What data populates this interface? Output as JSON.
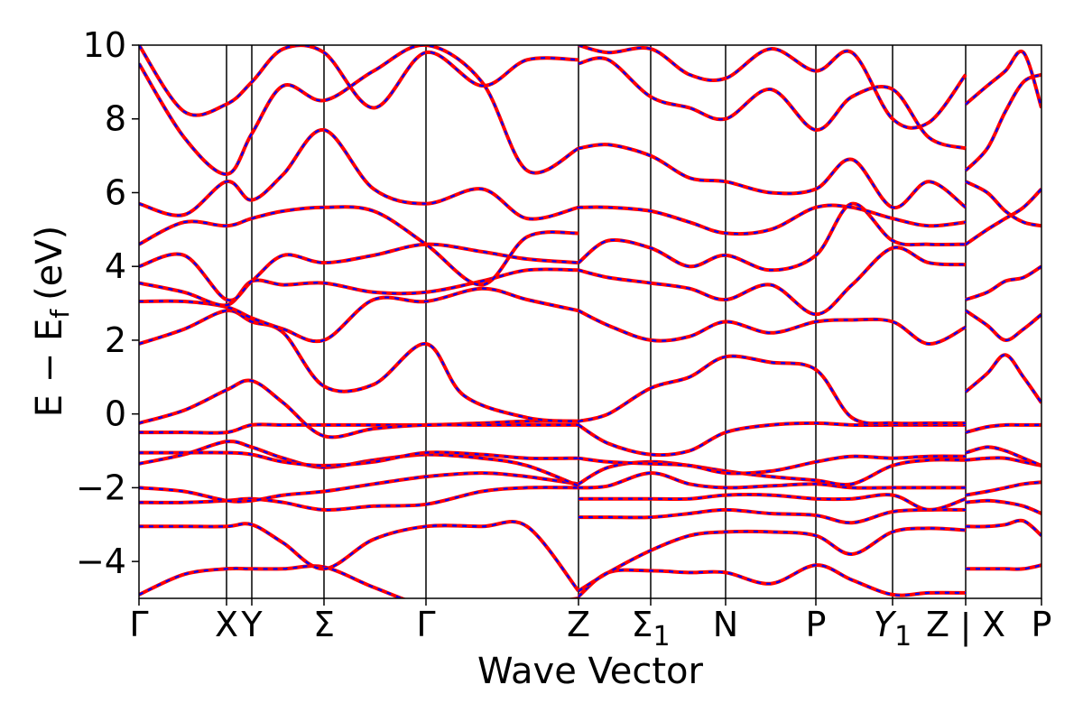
{
  "chart_data": {
    "type": "line",
    "xlabel": "Wave Vector",
    "ylabel": "E − E",
    "ylabel_sub": "f",
    "ylabel_unit": "(eV)",
    "ylim": [
      -5,
      10
    ],
    "yticks": [
      -4,
      -2,
      0,
      2,
      4,
      6,
      8,
      10
    ],
    "ytick_labels": [
      "−4",
      "−2",
      "0",
      "2",
      "4",
      "6",
      "8",
      "10"
    ],
    "xlim": [
      0,
      10
    ],
    "kpoints": [
      {
        "label": "Γ",
        "x": 0
      },
      {
        "label": "X",
        "x": 0.97
      },
      {
        "label": "Y",
        "x": 1.25
      },
      {
        "label": "Σ",
        "x": 2.05
      },
      {
        "label": "Γ",
        "x": 3.18
      },
      {
        "label": "Z",
        "x": 4.87
      },
      {
        "label": "Σ",
        "sub": "1",
        "x": 5.67
      },
      {
        "label": "N",
        "x": 6.5
      },
      {
        "label": "P",
        "x": 7.5
      },
      {
        "label": "Y",
        "sub": "1",
        "italic": true,
        "x": 8.35
      },
      {
        "label": "Z",
        "x": 9.16
      },
      {
        "label": "X",
        "x": 9.16
      },
      {
        "label": "P",
        "x": 10
      }
    ],
    "segment_break_label": "|",
    "colors": {
      "dft": "#ff0000",
      "wannier": "#0000ff"
    },
    "bands": [
      {
        "x": [
          0,
          0.5,
          0.97,
          1.25,
          1.6,
          2.05,
          2.6,
          3.18,
          3.8,
          4.3,
          4.87
        ],
        "y": [
          -4.9,
          -4.35,
          -4.2,
          -4.2,
          -4.2,
          -4.15,
          -4.7,
          -5.2,
          -5.3,
          -5.2,
          -5.0
        ]
      },
      {
        "x": [
          0,
          0.5,
          0.97,
          1.25,
          1.6,
          2.05,
          2.6,
          3.18,
          3.8,
          4.3,
          4.87
        ],
        "y": [
          -3.05,
          -3.05,
          -3.05,
          -3.0,
          -3.5,
          -4.2,
          -3.4,
          -3.05,
          -3.05,
          -3.05,
          -4.8
        ]
      },
      {
        "x": [
          0,
          0.5,
          0.97,
          1.25,
          1.6,
          2.05,
          2.6,
          3.18,
          3.8,
          4.3,
          4.87
        ],
        "y": [
          -2.4,
          -2.4,
          -2.35,
          -2.3,
          -2.4,
          -2.6,
          -2.5,
          -2.45,
          -2.1,
          -2.0,
          -2.0
        ]
      },
      {
        "x": [
          0,
          0.5,
          0.97,
          1.25,
          1.6,
          2.05,
          2.6,
          3.18,
          3.8,
          4.3,
          4.87
        ],
        "y": [
          -2.0,
          -2.1,
          -2.35,
          -2.35,
          -2.2,
          -2.1,
          -1.9,
          -1.7,
          -1.6,
          -1.7,
          -1.9
        ]
      },
      {
        "x": [
          0,
          0.5,
          0.97,
          1.25,
          1.6,
          2.05,
          2.6,
          3.18,
          3.8,
          4.3,
          4.87
        ],
        "y": [
          -1.35,
          -1.1,
          -0.75,
          -0.9,
          -1.2,
          -1.45,
          -1.25,
          -1.1,
          -1.2,
          -1.4,
          -1.95
        ]
      },
      {
        "x": [
          0,
          0.5,
          0.97,
          1.25,
          1.6,
          2.05,
          2.6,
          3.18,
          3.8,
          4.3,
          4.87
        ],
        "y": [
          -1.05,
          -1.05,
          -1.05,
          -1.1,
          -1.3,
          -1.4,
          -1.3,
          -1.05,
          -1.1,
          -1.2,
          -1.2
        ]
      },
      {
        "x": [
          0,
          0.5,
          0.97,
          1.25,
          1.6,
          2.05,
          2.6,
          3.18,
          3.8,
          4.3,
          4.87
        ],
        "y": [
          -0.5,
          -0.5,
          -0.5,
          -0.3,
          -0.3,
          -0.3,
          -0.3,
          -0.3,
          -0.25,
          -0.2,
          -0.2
        ]
      },
      {
        "x": [
          0,
          0.5,
          0.97,
          1.25,
          1.6,
          2.05,
          2.6,
          3.18,
          3.8,
          4.3,
          4.87
        ],
        "y": [
          -0.25,
          0.1,
          0.65,
          0.9,
          0.3,
          -0.6,
          -0.4,
          -0.3,
          -0.3,
          -0.3,
          -0.3
        ]
      },
      {
        "x": [
          0,
          0.5,
          0.97,
          1.25,
          1.6,
          2.05,
          2.6,
          3.18,
          3.6,
          4.3,
          4.87
        ],
        "y": [
          1.9,
          2.3,
          2.8,
          2.5,
          2.2,
          0.75,
          0.8,
          1.9,
          0.5,
          -0.1,
          -0.2
        ]
      },
      {
        "x": [
          0,
          0.5,
          0.97,
          1.25,
          1.6,
          2.05,
          2.6,
          3.18,
          3.8,
          4.3,
          4.87
        ],
        "y": [
          3.05,
          3.05,
          2.9,
          2.6,
          2.3,
          2.0,
          3.1,
          3.05,
          3.4,
          3.1,
          2.8
        ]
      },
      {
        "x": [
          0,
          0.5,
          0.97,
          1.25,
          1.6,
          2.05,
          2.6,
          3.18,
          3.8,
          4.3,
          4.87
        ],
        "y": [
          3.55,
          3.3,
          2.95,
          3.6,
          3.5,
          3.55,
          3.3,
          3.3,
          3.6,
          3.9,
          3.9
        ]
      },
      {
        "x": [
          0,
          0.5,
          0.97,
          1.25,
          1.6,
          2.05,
          2.6,
          3.18,
          3.8,
          4.3,
          4.87
        ],
        "y": [
          4.0,
          4.3,
          3.1,
          3.6,
          4.3,
          4.1,
          4.3,
          4.6,
          4.4,
          4.2,
          4.1
        ]
      },
      {
        "x": [
          0,
          0.5,
          0.97,
          1.25,
          1.6,
          2.05,
          2.6,
          3.18,
          3.8,
          4.3,
          4.87
        ],
        "y": [
          4.6,
          5.2,
          5.1,
          5.3,
          5.5,
          5.6,
          5.5,
          4.6,
          3.5,
          4.8,
          4.9
        ]
      },
      {
        "x": [
          0,
          0.5,
          0.97,
          1.25,
          1.6,
          2.05,
          2.6,
          3.18,
          3.8,
          4.3,
          4.87
        ],
        "y": [
          5.7,
          5.4,
          6.3,
          5.8,
          6.5,
          7.7,
          6.1,
          5.7,
          6.1,
          5.3,
          5.6
        ]
      },
      {
        "x": [
          0,
          0.5,
          0.97,
          1.25,
          1.6,
          2.05,
          2.6,
          3.18,
          3.8,
          4.3,
          4.87
        ],
        "y": [
          9.5,
          7.5,
          6.5,
          7.6,
          8.9,
          8.5,
          9.3,
          10,
          9.0,
          6.6,
          7.2
        ]
      },
      {
        "x": [
          0,
          0.5,
          0.97,
          1.25,
          1.6,
          2.05,
          2.6,
          3.18,
          3.8,
          4.3,
          4.87
        ],
        "y": [
          10,
          8.2,
          8.4,
          9.0,
          9.9,
          9.8,
          8.3,
          9.8,
          8.9,
          9.6,
          9.6
        ]
      },
      {
        "x": [
          4.87,
          5.2,
          5.67,
          6.1,
          6.5,
          7.0,
          7.5,
          7.9,
          8.35,
          8.75,
          9.16
        ],
        "y": [
          -4.95,
          -4.3,
          -4.25,
          -4.3,
          -4.3,
          -4.6,
          -4.1,
          -4.5,
          -4.9,
          -4.85,
          -4.85
        ]
      },
      {
        "x": [
          4.87,
          5.2,
          5.67,
          6.1,
          6.5,
          7.0,
          7.5,
          7.9,
          8.35,
          8.75,
          9.16
        ],
        "y": [
          -4.8,
          -4.3,
          -3.7,
          -3.3,
          -3.2,
          -3.2,
          -3.3,
          -3.8,
          -3.2,
          -3.1,
          -3.15
        ]
      },
      {
        "x": [
          4.87,
          5.2,
          5.67,
          6.1,
          6.5,
          7.0,
          7.5,
          7.9,
          8.35,
          8.75,
          9.16
        ],
        "y": [
          -2.8,
          -2.8,
          -2.8,
          -2.7,
          -2.6,
          -2.7,
          -2.75,
          -2.95,
          -2.65,
          -2.6,
          -2.6
        ]
      },
      {
        "x": [
          4.87,
          5.2,
          5.67,
          6.1,
          6.5,
          7.0,
          7.5,
          7.9,
          8.35,
          8.75,
          9.16
        ],
        "y": [
          -2.3,
          -2.3,
          -2.3,
          -2.3,
          -2.2,
          -2.2,
          -2.3,
          -2.3,
          -2.2,
          -2.6,
          -2.3
        ]
      },
      {
        "x": [
          4.87,
          5.2,
          5.67,
          6.1,
          6.5,
          7.0,
          7.5,
          7.9,
          8.35,
          8.75,
          9.16
        ],
        "y": [
          -2.0,
          -1.95,
          -1.6,
          -1.9,
          -2.0,
          -1.95,
          -1.9,
          -2.0,
          -2.0,
          -2.0,
          -2.0
        ]
      },
      {
        "x": [
          4.87,
          5.2,
          5.67,
          6.1,
          6.5,
          7.0,
          7.5,
          7.9,
          8.35,
          8.75,
          9.16
        ],
        "y": [
          -1.9,
          -1.45,
          -1.3,
          -1.4,
          -1.55,
          -1.7,
          -1.8,
          -1.9,
          -1.4,
          -1.25,
          -1.25
        ]
      },
      {
        "x": [
          4.87,
          5.2,
          5.67,
          6.1,
          6.5,
          7.0,
          7.5,
          7.9,
          8.35,
          8.75,
          9.16
        ],
        "y": [
          -1.2,
          -1.3,
          -1.35,
          -1.4,
          -1.6,
          -1.55,
          -1.3,
          -1.15,
          -1.2,
          -1.15,
          -1.15
        ]
      },
      {
        "x": [
          4.87,
          5.2,
          5.67,
          6.1,
          6.5,
          7.0,
          7.5,
          7.9,
          8.35,
          8.75,
          9.16
        ],
        "y": [
          -0.3,
          -0.8,
          -1.1,
          -1.0,
          -0.5,
          -0.3,
          -0.25,
          -0.3,
          -0.3,
          -0.3,
          -0.3
        ]
      },
      {
        "x": [
          4.87,
          5.2,
          5.67,
          6.1,
          6.5,
          7.0,
          7.5,
          7.9,
          8.35,
          8.75,
          9.16
        ],
        "y": [
          -0.2,
          0.0,
          0.7,
          1.0,
          1.55,
          1.4,
          1.2,
          -0.1,
          -0.25,
          -0.25,
          -0.25
        ]
      },
      {
        "x": [
          4.87,
          5.2,
          5.67,
          6.1,
          6.5,
          7.0,
          7.5,
          7.9,
          8.35,
          8.75,
          9.16
        ],
        "y": [
          2.8,
          2.4,
          2.0,
          2.1,
          2.5,
          2.2,
          2.5,
          2.55,
          2.5,
          1.9,
          2.35
        ]
      },
      {
        "x": [
          4.87,
          5.2,
          5.67,
          6.1,
          6.5,
          7.0,
          7.5,
          7.9,
          8.35,
          8.75,
          9.16
        ],
        "y": [
          3.9,
          3.7,
          3.55,
          3.4,
          3.1,
          3.5,
          2.7,
          3.5,
          4.5,
          4.1,
          4.05
        ]
      },
      {
        "x": [
          4.87,
          5.2,
          5.67,
          6.1,
          6.5,
          7.0,
          7.5,
          7.9,
          8.35,
          8.75,
          9.16
        ],
        "y": [
          4.1,
          4.7,
          4.5,
          4.0,
          4.3,
          3.9,
          4.3,
          5.7,
          4.7,
          4.6,
          4.6
        ]
      },
      {
        "x": [
          4.87,
          5.2,
          5.67,
          6.1,
          6.5,
          7.0,
          7.5,
          7.9,
          8.35,
          8.75,
          9.16
        ],
        "y": [
          5.6,
          5.6,
          5.5,
          5.2,
          4.9,
          5.0,
          5.6,
          5.6,
          5.3,
          5.1,
          5.2
        ]
      },
      {
        "x": [
          4.87,
          5.2,
          5.67,
          6.1,
          6.5,
          7.0,
          7.5,
          7.9,
          8.35,
          8.75,
          9.16
        ],
        "y": [
          7.2,
          7.3,
          7.0,
          6.4,
          6.3,
          6.0,
          6.1,
          6.9,
          5.6,
          6.3,
          5.6
        ]
      },
      {
        "x": [
          4.87,
          5.2,
          5.67,
          6.1,
          6.5,
          7.0,
          7.5,
          7.9,
          8.35,
          8.75,
          9.16
        ],
        "y": [
          9.5,
          9.6,
          8.6,
          8.3,
          8.0,
          8.8,
          7.7,
          8.6,
          8.8,
          7.5,
          7.2
        ]
      },
      {
        "x": [
          4.87,
          5.2,
          5.67,
          6.1,
          6.5,
          7.0,
          7.5,
          7.9,
          8.35,
          8.75,
          9.16
        ],
        "y": [
          10,
          9.8,
          9.9,
          9.2,
          9.1,
          9.9,
          9.3,
          9.8,
          8.0,
          7.9,
          9.2
        ]
      },
      {
        "x": [
          9.16,
          9.4,
          9.6,
          9.8,
          10
        ],
        "y": [
          -4.2,
          -4.2,
          -4.2,
          -4.2,
          -4.1
        ]
      },
      {
        "x": [
          9.16,
          9.4,
          9.6,
          9.8,
          10
        ],
        "y": [
          -3.05,
          -3.05,
          -3.0,
          -2.9,
          -3.3
        ]
      },
      {
        "x": [
          9.16,
          9.4,
          9.6,
          9.8,
          10
        ],
        "y": [
          -2.4,
          -2.35,
          -2.4,
          -2.5,
          -2.7
        ]
      },
      {
        "x": [
          9.16,
          9.4,
          9.6,
          9.8,
          10
        ],
        "y": [
          -2.2,
          -2.1,
          -2.0,
          -1.9,
          -1.85
        ]
      },
      {
        "x": [
          9.16,
          9.4,
          9.6,
          9.8,
          10
        ],
        "y": [
          -1.25,
          -1.2,
          -1.2,
          -1.3,
          -1.4
        ]
      },
      {
        "x": [
          9.16,
          9.4,
          9.6,
          9.8,
          10
        ],
        "y": [
          -1.05,
          -0.9,
          -1.0,
          -1.2,
          -1.4
        ]
      },
      {
        "x": [
          9.16,
          9.4,
          9.6,
          9.8,
          10
        ],
        "y": [
          -0.5,
          -0.35,
          -0.3,
          -0.3,
          -0.3
        ]
      },
      {
        "x": [
          9.16,
          9.4,
          9.6,
          9.8,
          10
        ],
        "y": [
          0.6,
          1.1,
          1.6,
          1.0,
          0.3
        ]
      },
      {
        "x": [
          9.16,
          9.4,
          9.6,
          9.8,
          10
        ],
        "y": [
          2.8,
          2.4,
          2.0,
          2.3,
          2.7
        ]
      },
      {
        "x": [
          9.16,
          9.4,
          9.6,
          9.8,
          10
        ],
        "y": [
          3.1,
          3.3,
          3.6,
          3.7,
          4.0
        ]
      },
      {
        "x": [
          9.16,
          9.4,
          9.6,
          9.8,
          10
        ],
        "y": [
          4.6,
          5.0,
          5.3,
          5.6,
          6.1
        ]
      },
      {
        "x": [
          9.16,
          9.4,
          9.6,
          9.8,
          10
        ],
        "y": [
          6.3,
          6.0,
          5.5,
          5.2,
          5.1
        ]
      },
      {
        "x": [
          9.16,
          9.4,
          9.6,
          9.8,
          10
        ],
        "y": [
          6.6,
          7.2,
          8.2,
          9.0,
          9.2
        ]
      },
      {
        "x": [
          9.16,
          9.4,
          9.6,
          9.8,
          10
        ],
        "y": [
          8.4,
          8.9,
          9.3,
          9.8,
          8.3
        ]
      }
    ]
  }
}
